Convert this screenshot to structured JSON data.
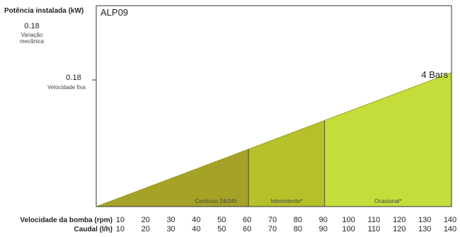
{
  "chart_data": {
    "type": "area",
    "title": "ALP09",
    "ylabel": "Potência instalada (kW)",
    "y_labels": [
      {
        "value": "0.18",
        "caption_lines": [
          "Variação",
          "mecânica"
        ]
      },
      {
        "value": "0.18",
        "caption_lines": [
          "Velocidade fixa"
        ]
      }
    ],
    "series": [
      {
        "name": "4 Bars",
        "x": [
          0,
          140
        ],
        "y": [
          0,
          0.18
        ]
      }
    ],
    "xlim": [
      0,
      140
    ],
    "ylim": [
      0,
      0.27
    ],
    "zones": [
      {
        "label": "Contínuo 24/24h",
        "from": 0,
        "to": 60,
        "color": "#a4a327"
      },
      {
        "label": "Intermitente*",
        "from": 60,
        "to": 90,
        "color": "#b6c12a"
      },
      {
        "label": "Ocasional*",
        "from": 90,
        "to": 140,
        "color": "#c5dd3a"
      }
    ],
    "x_rows": [
      {
        "label": "Velocidade da bomba (rpm)",
        "ticks": [
          "10",
          "20",
          "30",
          "40",
          "50",
          "60",
          "70",
          "80",
          "90",
          "100",
          "110",
          "120",
          "130",
          "140"
        ]
      },
      {
        "label": "Caudal (l/h)",
        "ticks": [
          "10",
          "20",
          "30",
          "40",
          "50",
          "60",
          "70",
          "80",
          "90",
          "100",
          "110",
          "120",
          "130",
          "140"
        ]
      }
    ]
  }
}
